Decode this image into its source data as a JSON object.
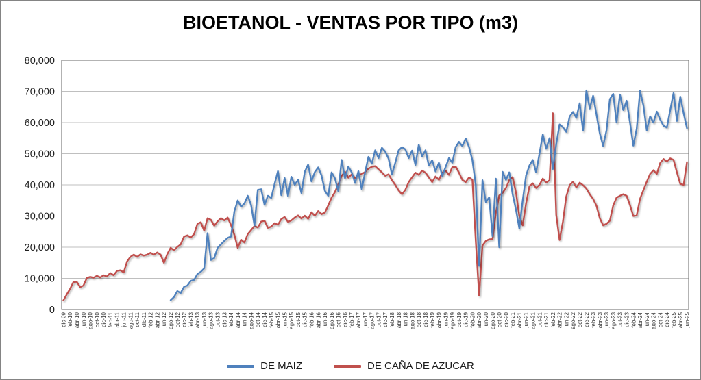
{
  "window": {
    "background": "#ffffff",
    "border_color": "#848484"
  },
  "chart_data": {
    "type": "line",
    "title": "BIOETANOL - VENTAS POR TIPO (m3)",
    "xlabel": "",
    "ylabel": "",
    "ylim": [
      0,
      80000
    ],
    "ytick_step": 10000,
    "y_tick_labels": [
      "0",
      "10,000",
      "20,000",
      "30,000",
      "40,000",
      "50,000",
      "60,000",
      "70,000",
      "80,000"
    ],
    "grid": true,
    "legend_position": "bottom",
    "months_per_tick": 2,
    "x_tick_labels": [
      "dic-09",
      "feb-10",
      "abr-10",
      "jun-10",
      "ago-10",
      "oct-10",
      "dic-10",
      "feb-11",
      "abr-11",
      "jun-11",
      "ago-11",
      "oct-11",
      "dic-11",
      "feb-12",
      "abr-12",
      "jun-12",
      "ago-12",
      "oct-12",
      "dic-12",
      "feb-13",
      "abr-13",
      "jun-13",
      "ago-13",
      "oct-13",
      "dic-13",
      "feb-14",
      "abr-14",
      "jun-14",
      "ago-14",
      "oct-14",
      "dic-14",
      "feb-15",
      "abr-15",
      "jun-15",
      "ago-15",
      "oct-15",
      "dic-15",
      "feb-16",
      "abr-16",
      "jun-16",
      "ago-16",
      "oct-16",
      "dic-16",
      "feb-17",
      "abr-17",
      "jun-17",
      "ago-17",
      "oct-17",
      "dic-17",
      "feb-18",
      "abr-18",
      "jun-18",
      "ago-18",
      "oct-18",
      "dic-18",
      "feb-19",
      "abr-19",
      "jun-19",
      "ago-19",
      "oct-19",
      "dic-19",
      "feb-20",
      "abr-20",
      "jun-20",
      "ago-20",
      "oct-20",
      "dic-20",
      "feb-21",
      "abr-21",
      "jun-21",
      "ago-21",
      "oct-21",
      "dic-21",
      "feb-22",
      "abr-22",
      "jun-22",
      "ago-22",
      "oct-22",
      "dic-22",
      "feb-23",
      "abr-23",
      "jun-23",
      "ago-23",
      "oct-23",
      "dic-23",
      "feb-24",
      "abr-24",
      "jun-24",
      "ago-24",
      "oct-24",
      "dic-24",
      "feb-25",
      "abr-25",
      "jun-25"
    ],
    "series": [
      {
        "name": "DE MAIZ",
        "color": "#4F81BD",
        "values": [
          null,
          null,
          null,
          null,
          null,
          null,
          null,
          null,
          null,
          null,
          null,
          null,
          null,
          null,
          null,
          null,
          null,
          null,
          null,
          null,
          null,
          null,
          null,
          null,
          null,
          null,
          null,
          null,
          null,
          null,
          null,
          null,
          3000,
          4000,
          5900,
          5300,
          7300,
          7700,
          9200,
          9500,
          11400,
          12100,
          13200,
          24500,
          15900,
          16500,
          19800,
          20900,
          22000,
          23000,
          23400,
          31500,
          35000,
          33000,
          34000,
          36500,
          33500,
          27000,
          38400,
          38600,
          33600,
          36500,
          35800,
          40300,
          44400,
          36700,
          42200,
          36400,
          42600,
          40000,
          41600,
          37400,
          44200,
          46500,
          41100,
          44100,
          45600,
          43000,
          38100,
          36500,
          44000,
          42100,
          38000,
          48000,
          42100,
          45900,
          44000,
          40600,
          44400,
          38500,
          44100,
          49000,
          46800,
          51100,
          48600,
          51900,
          50700,
          48400,
          43300,
          47100,
          51100,
          52100,
          51400,
          48600,
          51000,
          46400,
          52900,
          49100,
          51100,
          46200,
          47900,
          44300,
          47100,
          42900,
          45700,
          48600,
          47100,
          52100,
          53800,
          52400,
          54900,
          52100,
          47900,
          40000,
          14000,
          41500,
          34500,
          36000,
          23500,
          42000,
          20000,
          44200,
          41600,
          44000,
          37000,
          32000,
          26000,
          35000,
          43000,
          46200,
          48000,
          44000,
          50000,
          56200,
          51600,
          55000,
          45100,
          53000,
          59400,
          58500,
          57000,
          61900,
          63400,
          61500,
          66200,
          57400,
          70300,
          64500,
          68600,
          62600,
          56500,
          52500,
          57500,
          67500,
          69200,
          60000,
          69000,
          64000,
          67000,
          60000,
          52600,
          58000,
          70200,
          65500,
          57500,
          62000,
          60000,
          63500,
          61000,
          59000,
          58400,
          64000,
          69500,
          60500,
          68300,
          63000,
          58200
        ]
      },
      {
        "name": "DE CAÑA DE AZUCAR",
        "color": "#C0504D",
        "values": [
          2900,
          4800,
          6600,
          8800,
          8900,
          7200,
          7700,
          10100,
          10500,
          10200,
          10800,
          10300,
          11000,
          10600,
          11700,
          11000,
          12400,
          12600,
          11900,
          15400,
          16900,
          17600,
          16900,
          17700,
          17300,
          17600,
          18200,
          17600,
          18300,
          17600,
          15000,
          17800,
          19800,
          19000,
          20100,
          20900,
          23400,
          23800,
          23100,
          24200,
          27500,
          28000,
          25300,
          29300,
          28800,
          26900,
          28300,
          29300,
          28600,
          29500,
          27100,
          24000,
          19800,
          22400,
          21500,
          24200,
          25500,
          26800,
          26300,
          28200,
          28500,
          26200,
          26600,
          27700,
          27200,
          29000,
          29700,
          28100,
          28600,
          29500,
          30200,
          29200,
          30100,
          29100,
          31200,
          30100,
          31600,
          30600,
          31100,
          33400,
          35900,
          37700,
          40200,
          42900,
          44200,
          42300,
          43400,
          42200,
          43100,
          43500,
          44100,
          45200,
          45800,
          46000,
          45000,
          44000,
          42900,
          43400,
          41500,
          40000,
          38200,
          37000,
          38400,
          40900,
          42400,
          43900,
          43200,
          44600,
          43900,
          42400,
          40900,
          42700,
          41600,
          43900,
          44600,
          43200,
          45700,
          45900,
          43900,
          41600,
          40900,
          42400,
          41600,
          22000,
          4500,
          20500,
          22000,
          22500,
          22600,
          31000,
          36600,
          37400,
          39000,
          41500,
          42500,
          37500,
          30000,
          27000,
          34000,
          39500,
          40500,
          39000,
          40000,
          42000,
          40700,
          41500,
          63000,
          30400,
          22300,
          28200,
          36300,
          39900,
          41000,
          39200,
          40700,
          39900,
          38800,
          37000,
          35500,
          33300,
          29300,
          27000,
          27500,
          28500,
          33400,
          35900,
          36500,
          37000,
          36500,
          33500,
          30000,
          30200,
          35500,
          38300,
          41000,
          43500,
          44700,
          43500,
          47000,
          48300,
          47500,
          48500,
          48000,
          44000,
          40300,
          40000,
          47300
        ]
      }
    ]
  }
}
